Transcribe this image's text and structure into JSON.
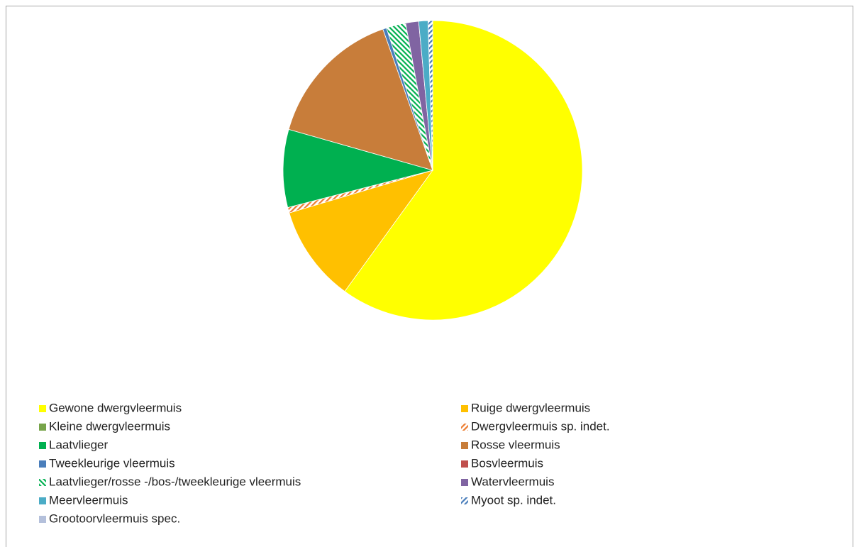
{
  "chart_data": {
    "type": "pie",
    "categories": [
      "Gewone dwergvleermuis",
      "Ruige dwergvleermuis",
      "Kleine dwergvleermuis",
      "Dwergvleermuis sp. indet.",
      "Laatvlieger",
      "Rosse vleermuis",
      "Tweekleurige vleermuis",
      "Bosvleermuis",
      "Laatvlieger/rosse -/bos-/tweekleurige vleermuis",
      "Watervleermuis",
      "Meervleermuis",
      "Myoot sp. indet.",
      "Grootoorvleermuis spec."
    ],
    "values": [
      60,
      10.4,
      0,
      0.6,
      8.4,
      15.2,
      0.4,
      0,
      2.1,
      1.4,
      1,
      0.5,
      0
    ],
    "colors": [
      "#ffff00",
      "#ffc000",
      "#77a44a",
      "#ed7d31",
      "#00b050",
      "#c87d3a",
      "#4a7ebb",
      "#c0504d",
      "#00b050",
      "#8064a2",
      "#4bacc6",
      "#4a7ebb",
      "#b4c0db"
    ],
    "hatch": [
      null,
      null,
      null,
      "/",
      null,
      null,
      null,
      null,
      "\\",
      null,
      null,
      "/",
      null
    ],
    "legend": "bottom"
  }
}
